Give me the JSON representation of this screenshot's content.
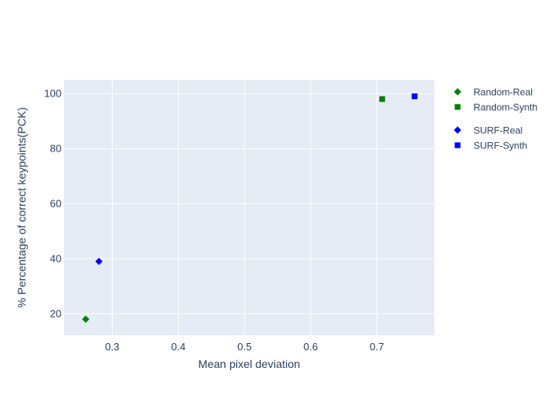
{
  "chart_data": {
    "type": "scatter",
    "xlabel": "Mean pixel deviation",
    "ylabel": "% Percentage of correct keypoints(PCK)",
    "xlim": [
      0.227,
      0.787
    ],
    "ylim": [
      12.2,
      105
    ],
    "xticks": [
      0.3,
      0.4,
      0.5,
      0.6,
      0.7
    ],
    "yticks": [
      20,
      40,
      60,
      80,
      100
    ],
    "xtick_labels": [
      "0.3",
      "0.4",
      "0.5",
      "0.6",
      "0.7"
    ],
    "ytick_labels": [
      "20",
      "40",
      "60",
      "80",
      "100"
    ],
    "grid": true,
    "plot_background": "#e5ecf6",
    "legend_position": "right",
    "series": [
      {
        "name": "Random-Real",
        "marker": "diamond",
        "color": "#008000",
        "x": [
          0.26
        ],
        "y": [
          18
        ]
      },
      {
        "name": "Random-Synth",
        "marker": "square",
        "color": "#008000",
        "x": [
          0.708
        ],
        "y": [
          98
        ]
      },
      {
        "name": "SURF-Real",
        "marker": "diamond",
        "color": "#0000ff",
        "x": [
          0.28
        ],
        "y": [
          39
        ]
      },
      {
        "name": "SURF-Synth",
        "marker": "square",
        "color": "#0000ff",
        "x": [
          0.757
        ],
        "y": [
          99
        ]
      }
    ]
  }
}
